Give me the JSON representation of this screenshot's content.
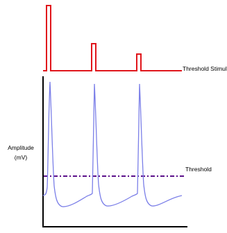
{
  "labels": {
    "stimulus": "Threshold Stimulus",
    "threshold": "Threshold",
    "amplitude_line1": "Amplitude",
    "amplitude_line2": "(mV)"
  },
  "colors": {
    "stimulus_trace": "#e0151b",
    "response_trace": "#7b7fe8",
    "threshold_line": "#5a0f8a",
    "axes": "#000000",
    "background": "#ffffff"
  }
}
